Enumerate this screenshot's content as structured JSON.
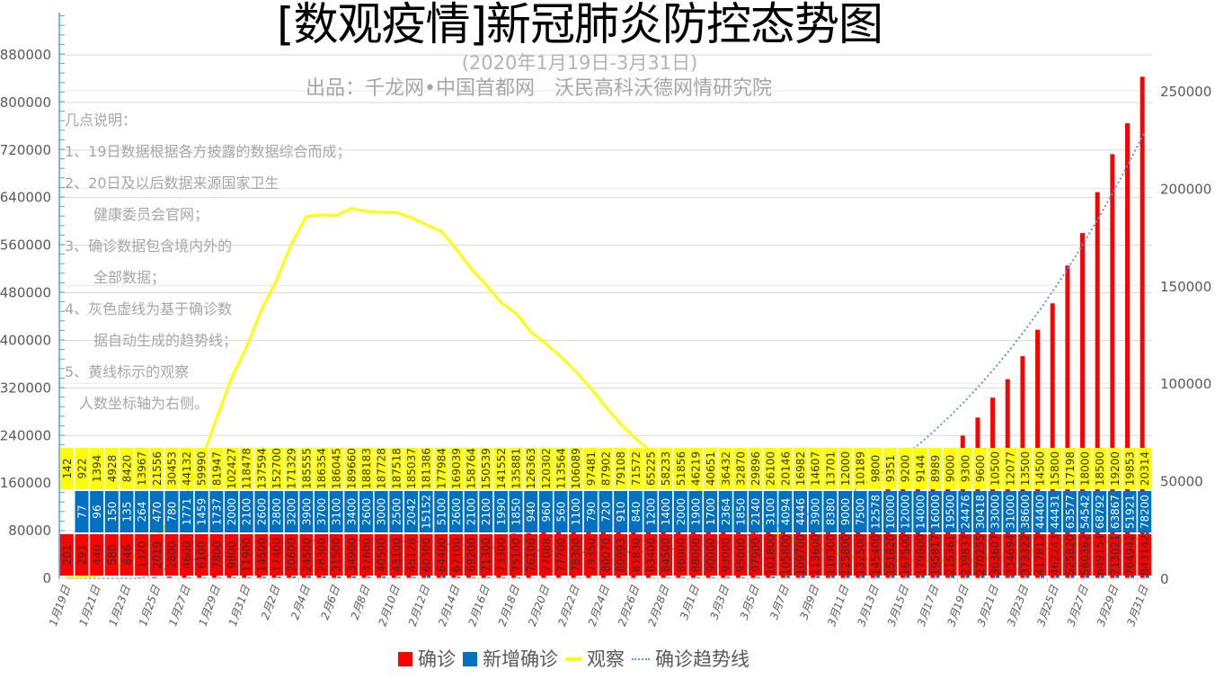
{
  "title": "[数观疫情]新冠肺炎防控态势图",
  "subtitle": "(2020年1月19日-3月31日)",
  "producer": "出品：千龙网•中国首都网　沃民高科沃德网情研究院",
  "notes": [
    "几点说明：",
    "1、19日数据根据各方披露的数据综合而成；",
    "2、20日及以后数据来源国家卫生",
    "　　健康委员会官网；",
    "3、确诊数据包含境内外的",
    "　　全部数据；",
    "4、灰色虚线为基于确诊数",
    "　　据自动生成的趋势线；",
    "5、黄线标示的观察",
    "　人数坐标轴为右侧。"
  ],
  "legend": [
    {
      "label": "确诊",
      "color": "#ff0000",
      "kind": "box"
    },
    {
      "label": "新增确诊",
      "color": "#0070c0",
      "kind": "box"
    },
    {
      "label": "观察",
      "color": "#ffff00",
      "kind": "line"
    },
    {
      "label": "确诊趋势线",
      "color": "#5b9bd5",
      "kind": "dotted"
    }
  ],
  "chart_data": {
    "type": "bar+line",
    "legend_position": "bottom",
    "grid": true,
    "left_axis": {
      "ticks": [
        0,
        80000,
        160000,
        240000,
        320000,
        400000,
        480000,
        560000,
        640000,
        720000,
        800000,
        880000
      ],
      "ylim": [
        0,
        960000
      ]
    },
    "right_axis": {
      "ticks": [
        0,
        50000,
        100000,
        150000,
        200000,
        250000
      ]
    },
    "categories": [
      "1月19日",
      "1月20日",
      "1月21日",
      "1月22日",
      "1月23日",
      "1月24日",
      "1月25日",
      "1月26日",
      "1月27日",
      "1月28日",
      "1月29日",
      "1月30日",
      "1月31日",
      "2月1日",
      "2月2日",
      "2月3日",
      "2月4日",
      "2月5日",
      "2月6日",
      "2月7日",
      "2月8日",
      "2月9日",
      "2月10日",
      "2月11日",
      "2月12日",
      "2月13日",
      "2月14日",
      "2月15日",
      "2月16日",
      "2月17日",
      "2月18日",
      "2月19日",
      "2月20日",
      "2月21日",
      "2月22日",
      "2月23日",
      "2月24日",
      "2月25日",
      "2月26日",
      "2月27日",
      "2月28日",
      "2月29日",
      "3月1日",
      "3月2日",
      "3月3日",
      "3月4日",
      "3月5日",
      "3月6日",
      "3月7日",
      "3月8日",
      "3月9日",
      "3月10日",
      "3月11日",
      "3月12日",
      "3月13日",
      "3月14日",
      "3月15日",
      "3月16日",
      "3月17日",
      "3月18日",
      "3月19日",
      "3月20日",
      "3月21日",
      "3月22日",
      "3月23日",
      "3月24日",
      "3月25日",
      "3月26日",
      "3月27日",
      "3月28日",
      "3月29日",
      "3月30日",
      "3月31日"
    ],
    "series": [
      {
        "name": "确诊",
        "type": "bar",
        "axis": "left",
        "color": "#ff0000",
        "values": [
          201,
          291,
          440,
          580,
          846,
          1320,
          2019,
          2800,
          4600,
          6100,
          7800,
          9800,
          11900,
          14500,
          17400,
          20600,
          24500,
          28300,
          31500,
          34900,
          37600,
          40500,
          43100,
          45128,
          60300,
          64400,
          67100,
          69200,
          71300,
          73300,
          75100,
          76100,
          77088,
          77700,
          78300,
          79350,
          80070,
          80993,
          81830,
          83400,
          84500,
          86000,
          88000,
          90000,
          93000,
          95000,
          97900,
          101800,
          105800,
          109700,
          113600,
          118300,
          125800,
          132500,
          145400,
          151820,
          167500,
          179800,
          195817,
          215361,
          239837,
          270255,
          303607,
          334694,
          373322,
          417812,
          462243,
          525820,
          580362,
          649154,
          713021,
          764942,
          843142
        ]
      },
      {
        "name": "新增确诊",
        "type": "bar",
        "axis": "left",
        "color": "#0070c0",
        "values": [
          null,
          77,
          96,
          150,
          135,
          264,
          470,
          780,
          1771,
          1459,
          1737,
          2000,
          2100,
          2600,
          2800,
          3200,
          3900,
          3700,
          3100,
          3400,
          2600,
          3000,
          2500,
          2042,
          15152,
          5100,
          2600,
          2100,
          2100,
          1990,
          1850,
          940,
          960,
          560,
          1100,
          790,
          720,
          910,
          840,
          1200,
          1400,
          2000,
          1900,
          1700,
          2364,
          1850,
          2140,
          3100,
          4094,
          4446,
          3900,
          8380,
          9000,
          7500,
          12578,
          10000,
          12000,
          14000,
          16000,
          19500,
          24476,
          30418,
          33000,
          31000,
          38600,
          44400,
          44431,
          63577,
          54542,
          68792,
          63867,
          51921,
          78200
        ]
      },
      {
        "name": "观察",
        "type": "line",
        "axis": "right",
        "color": "#ffff00",
        "values": [
          142,
          922,
          1394,
          4928,
          8420,
          13967,
          21556,
          30453,
          44132,
          59990,
          81947,
          102427,
          118478,
          137594,
          152700,
          171329,
          185555,
          186354,
          186045,
          189660,
          188183,
          187728,
          187518,
          185037,
          181386,
          177984,
          169039,
          158764,
          150539,
          141552,
          135881,
          126363,
          120302,
          113564,
          106089,
          97481,
          87902,
          79108,
          71572,
          65225,
          58233,
          51856,
          46219,
          40651,
          36432,
          32870,
          29896,
          26100,
          20146,
          16982,
          14607,
          13701,
          12000,
          10189,
          9800,
          9351,
          9200,
          9144,
          8989,
          9000,
          9300,
          9600,
          10500,
          12077,
          13500,
          14500,
          15800,
          17198,
          18000,
          18500,
          19200,
          19853,
          20314
        ]
      },
      {
        "name": "确诊趋势线",
        "type": "trendline",
        "of": "确诊",
        "axis": "left",
        "color": "#5b9bd5"
      }
    ]
  }
}
